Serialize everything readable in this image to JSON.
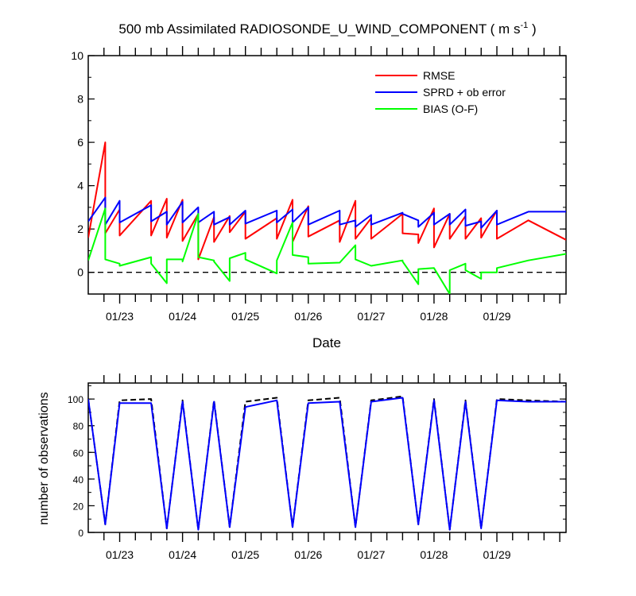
{
  "chart_data": [
    {
      "type": "line",
      "title": "500 mb Assimilated RADIOSONDE_U_WIND_COMPONENT ( m s",
      "title_sup": "-1",
      "title_end": " )",
      "xlabel": "Date",
      "ylabel": "",
      "ylim": [
        -1,
        10
      ],
      "xlim": [
        0,
        7.6
      ],
      "yticks": [
        "10",
        "8",
        "6",
        "4",
        "2",
        "0"
      ],
      "ytick_values": [
        10,
        8,
        6,
        4,
        2,
        0
      ],
      "xtick_labels": [
        "01/23",
        "01/24",
        "01/25",
        "01/26",
        "01/27",
        "01/28",
        "01/29"
      ],
      "xtick_values": [
        0.5,
        1.5,
        2.5,
        3.5,
        4.5,
        5.5,
        6.5
      ],
      "reference_line": {
        "y": 0,
        "style": "dashed"
      },
      "legend_position": "top-right",
      "series": [
        {
          "name": "RMSE",
          "color": "#ff0000",
          "x": [
            0,
            0.27,
            0.27,
            0.5,
            0.5,
            1.0,
            1.0,
            1.25,
            1.25,
            1.5,
            1.5,
            1.75,
            1.75,
            2.0,
            2.0,
            2.25,
            2.25,
            2.5,
            2.5,
            3.0,
            3.0,
            3.25,
            3.25,
            3.5,
            3.5,
            4.0,
            4.0,
            4.25,
            4.25,
            4.5,
            4.5,
            5.0,
            5.0,
            5.25,
            5.25,
            5.5,
            5.5,
            5.75,
            5.75,
            6.0,
            6.0,
            6.25,
            6.25,
            6.5,
            6.5,
            7.0,
            7.6
          ],
          "y": [
            1.6,
            6.0,
            1.8,
            2.9,
            1.7,
            3.3,
            1.7,
            3.4,
            1.6,
            3.35,
            1.45,
            2.7,
            0.6,
            2.55,
            1.4,
            2.6,
            1.85,
            2.8,
            1.55,
            2.5,
            1.55,
            3.35,
            1.4,
            3.05,
            1.65,
            2.4,
            1.4,
            3.3,
            1.55,
            2.5,
            1.55,
            2.7,
            1.8,
            1.75,
            1.35,
            2.95,
            1.15,
            2.7,
            1.55,
            2.6,
            1.55,
            2.5,
            1.6,
            2.85,
            1.55,
            2.4,
            1.5
          ]
        },
        {
          "name": "SPRD + ob error",
          "color": "#0000ff",
          "x": [
            0,
            0.27,
            0.27,
            0.5,
            0.5,
            1.0,
            1.0,
            1.25,
            1.25,
            1.5,
            1.5,
            1.75,
            1.75,
            2.0,
            2.0,
            2.25,
            2.25,
            2.5,
            2.5,
            3.0,
            3.0,
            3.25,
            3.25,
            3.5,
            3.5,
            4.0,
            4.0,
            4.25,
            4.25,
            4.5,
            4.5,
            5.0,
            5.0,
            5.25,
            5.25,
            5.5,
            5.5,
            5.75,
            5.75,
            6.0,
            6.0,
            6.25,
            6.25,
            6.5,
            6.5,
            7.0,
            7.6
          ],
          "y": [
            2.35,
            3.45,
            2.2,
            3.3,
            2.3,
            3.1,
            2.35,
            2.8,
            2.2,
            3.25,
            2.3,
            3.0,
            2.3,
            2.8,
            2.2,
            2.55,
            2.2,
            2.85,
            2.25,
            2.85,
            2.3,
            2.9,
            2.3,
            3.0,
            2.2,
            2.85,
            2.2,
            2.4,
            2.1,
            2.65,
            2.2,
            2.75,
            2.7,
            2.4,
            2.1,
            2.75,
            2.2,
            2.7,
            2.2,
            2.9,
            2.15,
            2.35,
            2.05,
            2.85,
            2.2,
            2.8,
            2.8
          ]
        },
        {
          "name": "BIAS (O-F)",
          "color": "#00ff00",
          "x": [
            0,
            0.27,
            0.27,
            0.5,
            0.5,
            1.0,
            1.0,
            1.25,
            1.25,
            1.5,
            1.5,
            1.75,
            1.75,
            2.0,
            2.0,
            2.25,
            2.25,
            2.5,
            2.5,
            3.0,
            3.0,
            3.25,
            3.25,
            3.5,
            3.5,
            4.0,
            4.0,
            4.25,
            4.25,
            4.5,
            4.5,
            5.0,
            5.0,
            5.25,
            5.25,
            5.5,
            5.5,
            5.75,
            5.75,
            6.0,
            6.0,
            6.25,
            6.25,
            6.5,
            6.5,
            7.0,
            7.6
          ],
          "y": [
            0.55,
            2.95,
            0.6,
            0.4,
            0.3,
            0.7,
            0.4,
            -0.5,
            0.6,
            0.6,
            0.5,
            2.7,
            0.7,
            0.55,
            0.5,
            -0.4,
            0.65,
            0.9,
            0.6,
            -0.05,
            0.55,
            2.3,
            0.8,
            0.7,
            0.4,
            0.45,
            0.45,
            1.25,
            0.6,
            0.3,
            0.3,
            0.55,
            0.5,
            -0.55,
            0.15,
            0.2,
            0.2,
            -1.0,
            0.1,
            0.4,
            0.1,
            -0.3,
            0.0,
            0.0,
            0.2,
            0.55,
            0.85
          ]
        }
      ]
    },
    {
      "type": "line",
      "title": "",
      "xlabel": "",
      "ylabel": "number of observations",
      "ylim": [
        0,
        112
      ],
      "xlim": [
        0,
        7.6
      ],
      "yticks": [
        "0",
        "20",
        "40",
        "60",
        "80",
        "100"
      ],
      "ytick_values": [
        0,
        20,
        40,
        60,
        80,
        100
      ],
      "xtick_labels": [
        "01/23",
        "01/24",
        "01/25",
        "01/26",
        "01/27",
        "01/28",
        "01/29"
      ],
      "xtick_values": [
        0.5,
        1.5,
        2.5,
        3.5,
        4.5,
        5.5,
        6.5
      ],
      "series": [
        {
          "name": "",
          "color": "#000000",
          "style": "dashed",
          "x": [
            0,
            0.27,
            0.5,
            1.0,
            1.25,
            1.5,
            1.75,
            2.0,
            2.25,
            2.5,
            3.0,
            3.25,
            3.5,
            4.0,
            4.25,
            4.5,
            5.0,
            5.25,
            5.5,
            5.75,
            6.0,
            6.25,
            6.5,
            7.0,
            7.6
          ],
          "y": [
            100,
            6,
            99,
            100,
            3,
            99,
            2,
            99,
            4,
            98,
            101,
            4,
            99,
            101,
            4,
            99,
            102,
            6,
            100,
            2,
            99,
            3,
            100,
            99,
            98
          ]
        },
        {
          "name": "",
          "color": "#0000ff",
          "style": "solid",
          "x": [
            0,
            0.27,
            0.5,
            1.0,
            1.25,
            1.5,
            1.75,
            2.0,
            2.25,
            2.5,
            3.0,
            3.25,
            3.5,
            4.0,
            4.25,
            4.5,
            5.0,
            5.25,
            5.5,
            5.75,
            6.0,
            6.25,
            6.5,
            7.0,
            7.6
          ],
          "y": [
            100,
            6,
            97,
            97,
            3,
            98,
            2,
            98,
            4,
            94,
            99,
            4,
            97,
            98,
            4,
            98,
            101,
            6,
            99,
            2,
            98,
            3,
            99,
            98,
            98
          ]
        }
      ]
    }
  ]
}
